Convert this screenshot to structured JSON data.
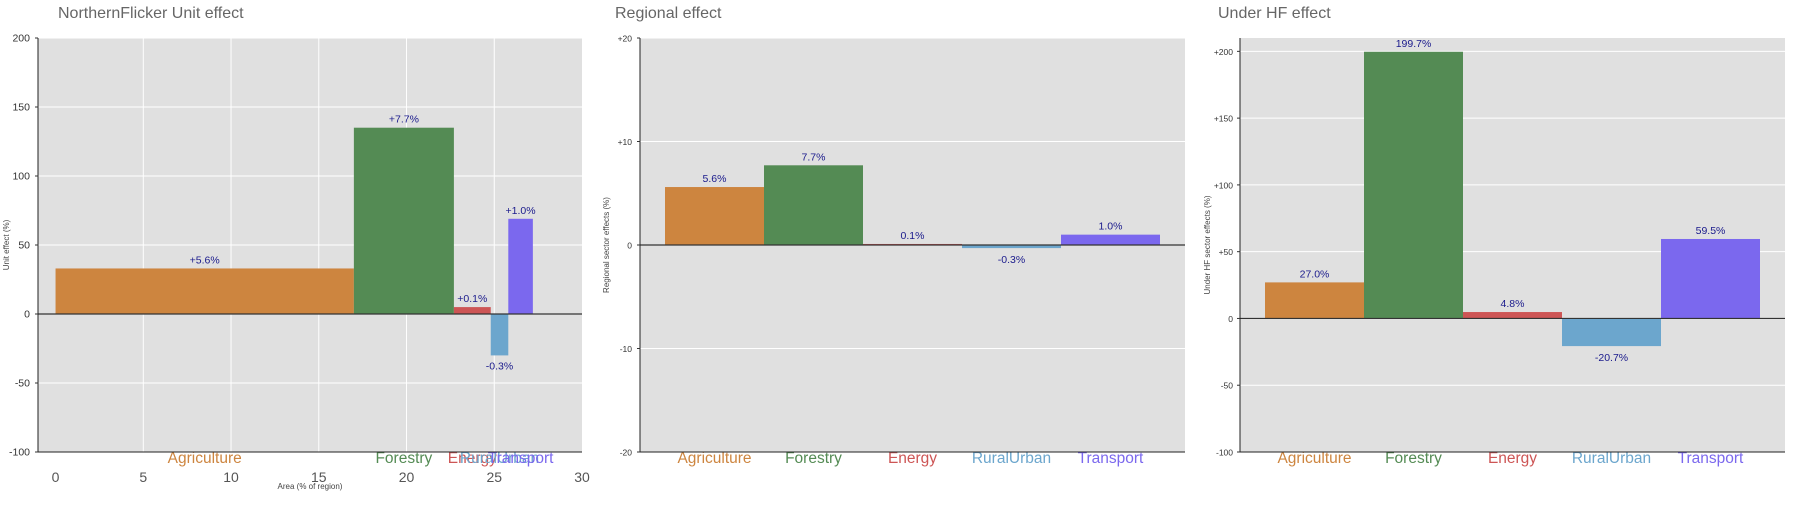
{
  "chart_data": [
    {
      "type": "bar",
      "title": "NorthernFlicker Unit effect",
      "xlabel": "Area (% of region)",
      "ylabel": "Unit effect (%)",
      "ylim": [
        -100,
        200
      ],
      "xlim": [
        -1,
        30
      ],
      "yticks": [
        -100,
        -50,
        0,
        50,
        100,
        150,
        200
      ],
      "yticklabels": [
        "-100",
        "-50",
        "0",
        "50",
        "100",
        "150",
        "200"
      ],
      "xticks": [
        0,
        5,
        10,
        15,
        20,
        25,
        30
      ],
      "grid": true,
      "bars": [
        {
          "category": "Agriculture",
          "x0": 0,
          "x1": 17,
          "value": 33,
          "label": "+5.6%",
          "color": "#CD853F"
        },
        {
          "category": "Forestry",
          "x0": 17,
          "x1": 22.7,
          "value": 135,
          "label": "+7.7%",
          "color": "#548B54"
        },
        {
          "category": "Energy",
          "x0": 22.7,
          "x1": 24.8,
          "value": 5,
          "label": "+0.1%",
          "color": "#CD5555"
        },
        {
          "category": "RuralUrban",
          "x0": 24.8,
          "x1": 25.8,
          "value": -30,
          "label": "-0.3%",
          "color": "#6CA6CD"
        },
        {
          "category": "Transport",
          "x0": 25.8,
          "x1": 27.2,
          "value": 69,
          "label": "+1.0%",
          "color": "#7B68EE"
        }
      ]
    },
    {
      "type": "bar",
      "title": "Regional effect",
      "xlabel": "",
      "ylabel": "Regional sector effects (%)",
      "ylim": [
        -20,
        20
      ],
      "yticks": [
        -20,
        -10,
        0,
        10,
        20
      ],
      "yticklabels": [
        "-20",
        "-10",
        "0",
        "+10",
        "+20"
      ],
      "grid": true,
      "categories": [
        "Agriculture",
        "Forestry",
        "Energy",
        "RuralUrban",
        "Transport"
      ],
      "values": [
        5.6,
        7.7,
        0.1,
        -0.3,
        1.0
      ],
      "labels": [
        "5.6%",
        "7.7%",
        "0.1%",
        "-0.3%",
        "1.0%"
      ],
      "colors": [
        "#CD853F",
        "#548B54",
        "#CD5555",
        "#6CA6CD",
        "#7B68EE"
      ]
    },
    {
      "type": "bar",
      "title": "Under HF effect",
      "xlabel": "",
      "ylabel": "Under HF sector effects (%)",
      "ylim": [
        -100,
        210
      ],
      "yticks": [
        -100,
        -50,
        0,
        50,
        100,
        150,
        200
      ],
      "yticklabels": [
        "-100",
        "-50",
        "0",
        "+50",
        "+100",
        "+150",
        "+200"
      ],
      "grid": true,
      "categories": [
        "Agriculture",
        "Forestry",
        "Energy",
        "RuralUrban",
        "Transport"
      ],
      "values": [
        27.0,
        199.7,
        4.8,
        -20.7,
        59.5
      ],
      "labels": [
        "27.0%",
        "199.7%",
        "4.8%",
        "-20.7%",
        "59.5%"
      ],
      "colors": [
        "#CD853F",
        "#548B54",
        "#CD5555",
        "#6CA6CD",
        "#7B68EE"
      ]
    }
  ]
}
